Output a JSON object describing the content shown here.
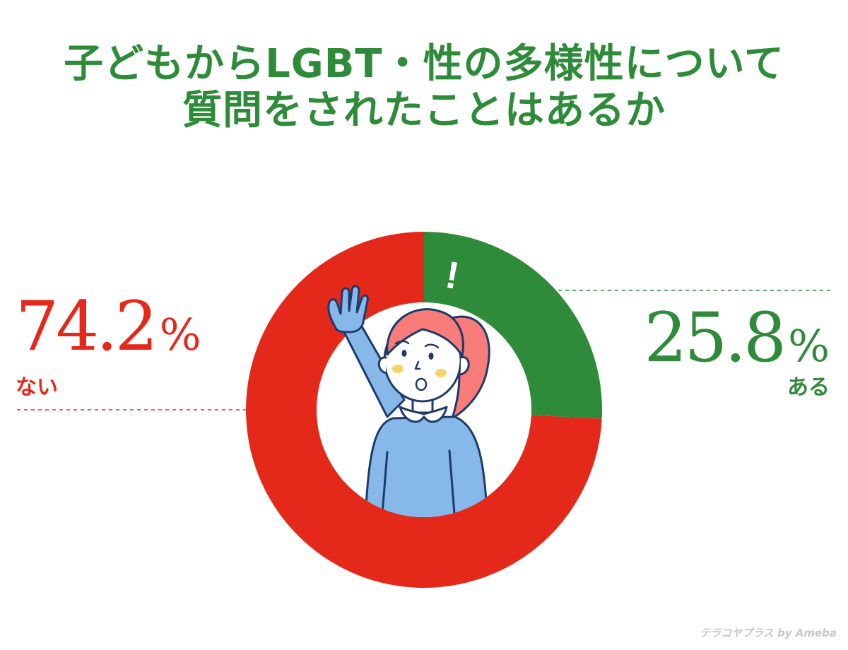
{
  "title_lines": [
    "子どもからLGBT・性の多様性について",
    "質問をされたことはあるか"
  ],
  "chart_data": {
    "type": "pie",
    "style": "donut",
    "title": "子どもからLGBT・性の多様性について 質問をされたことはあるか",
    "slices": [
      {
        "label": "ある",
        "value": 25.8,
        "display": "25.8",
        "color": "#2e8b3a"
      },
      {
        "label": "ない",
        "value": 74.2,
        "display": "74.2",
        "color": "#e4291b"
      }
    ],
    "unit": "%",
    "start": "12 o'clock",
    "direction": "clockwise"
  },
  "illustration": {
    "exclamation": "!"
  },
  "watermark": "テラコヤプラス by Ameba"
}
